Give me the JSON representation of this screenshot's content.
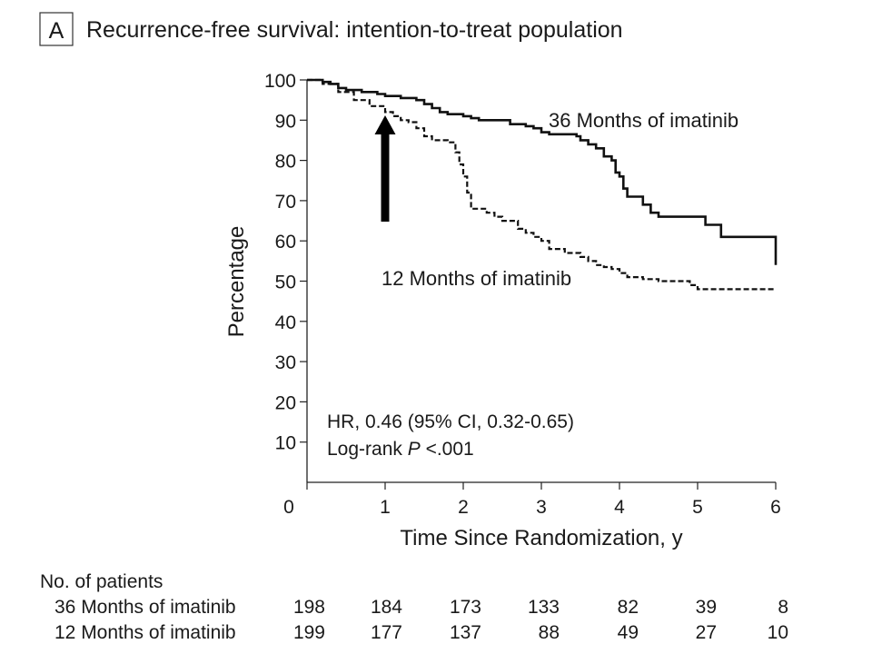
{
  "panel_label": "A",
  "chart_data": {
    "type": "line",
    "title": "Recurrence-free survival: intention-to-treat population",
    "xlabel": "Time Since Randomization, y",
    "ylabel": "Percentage",
    "xlim": [
      0,
      6
    ],
    "ylim": [
      0,
      100
    ],
    "xticks": [
      "0",
      "1",
      "2",
      "3",
      "4",
      "5",
      "6"
    ],
    "yticks": [
      "10",
      "20",
      "30",
      "40",
      "50",
      "60",
      "70",
      "80",
      "90",
      "100"
    ],
    "series": [
      {
        "name": "36 Months of imatinib",
        "style": "solid",
        "points": [
          [
            0,
            100
          ],
          [
            0.1,
            100
          ],
          [
            0.2,
            99.5
          ],
          [
            0.3,
            99
          ],
          [
            0.4,
            98
          ],
          [
            0.5,
            97.5
          ],
          [
            0.7,
            97
          ],
          [
            0.9,
            96.5
          ],
          [
            1.0,
            96
          ],
          [
            1.2,
            95.5
          ],
          [
            1.4,
            95
          ],
          [
            1.5,
            94
          ],
          [
            1.6,
            93
          ],
          [
            1.7,
            92
          ],
          [
            1.8,
            91.5
          ],
          [
            2.0,
            91
          ],
          [
            2.1,
            90.5
          ],
          [
            2.2,
            90
          ],
          [
            2.4,
            90
          ],
          [
            2.6,
            89
          ],
          [
            2.8,
            88.5
          ],
          [
            2.9,
            88
          ],
          [
            3.0,
            87
          ],
          [
            3.1,
            86.5
          ],
          [
            3.3,
            86.5
          ],
          [
            3.45,
            86
          ],
          [
            3.5,
            85
          ],
          [
            3.6,
            84
          ],
          [
            3.7,
            83
          ],
          [
            3.8,
            81
          ],
          [
            3.9,
            80
          ],
          [
            3.95,
            77
          ],
          [
            4.0,
            76
          ],
          [
            4.05,
            73
          ],
          [
            4.1,
            71
          ],
          [
            4.3,
            69
          ],
          [
            4.4,
            67
          ],
          [
            4.5,
            66
          ],
          [
            4.6,
            66
          ],
          [
            4.8,
            66
          ],
          [
            4.95,
            66
          ],
          [
            5.1,
            64
          ],
          [
            5.3,
            61
          ],
          [
            5.5,
            61
          ],
          [
            5.8,
            61
          ],
          [
            6.0,
            61
          ],
          [
            6.0,
            54
          ]
        ]
      },
      {
        "name": "12 Months of imatinib",
        "style": "dashed",
        "points": [
          [
            0,
            100
          ],
          [
            0.2,
            99
          ],
          [
            0.4,
            97
          ],
          [
            0.6,
            95
          ],
          [
            0.8,
            93.5
          ],
          [
            1.0,
            92
          ],
          [
            1.1,
            91
          ],
          [
            1.2,
            90
          ],
          [
            1.3,
            89.5
          ],
          [
            1.4,
            88
          ],
          [
            1.5,
            86
          ],
          [
            1.6,
            85
          ],
          [
            1.8,
            84.5
          ],
          [
            1.9,
            82
          ],
          [
            1.95,
            79
          ],
          [
            2.0,
            76
          ],
          [
            2.05,
            72
          ],
          [
            2.1,
            68
          ],
          [
            2.3,
            67
          ],
          [
            2.4,
            66
          ],
          [
            2.5,
            65
          ],
          [
            2.7,
            63
          ],
          [
            2.8,
            62
          ],
          [
            2.9,
            61
          ],
          [
            3.0,
            60
          ],
          [
            3.1,
            58
          ],
          [
            3.3,
            57
          ],
          [
            3.5,
            56
          ],
          [
            3.6,
            55
          ],
          [
            3.7,
            54
          ],
          [
            3.8,
            53.5
          ],
          [
            3.9,
            53
          ],
          [
            4.0,
            52
          ],
          [
            4.1,
            51
          ],
          [
            4.3,
            50.5
          ],
          [
            4.5,
            50
          ],
          [
            4.8,
            50
          ],
          [
            4.9,
            49
          ],
          [
            5.0,
            48
          ],
          [
            5.5,
            48
          ],
          [
            6.0,
            48
          ]
        ]
      }
    ],
    "annotations": [
      {
        "text": "HR, 0.46 (95% CI, 0.32-0.65)"
      },
      {
        "text_prefix": "Log-rank ",
        "text_italic": "P",
        "text_suffix": " <.001"
      }
    ],
    "arrow_at_x": 1
  },
  "risk_table": {
    "header": "No. of patients",
    "rows": [
      {
        "label": "36 Months of imatinib",
        "values": [
          "198",
          "184",
          "173",
          "133",
          "82",
          "39",
          "8"
        ]
      },
      {
        "label": "12 Months of imatinib",
        "values": [
          "199",
          "177",
          "137",
          "88",
          "49",
          "27",
          "10"
        ]
      }
    ]
  }
}
